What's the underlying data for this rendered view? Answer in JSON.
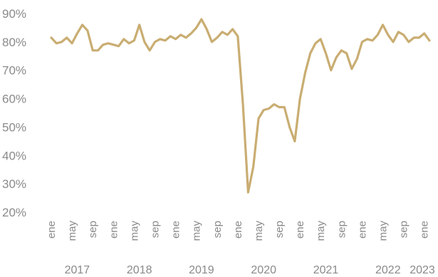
{
  "chart_data": {
    "type": "line",
    "title": "",
    "xlabel": "",
    "ylabel": "",
    "ylim": [
      20,
      90
    ],
    "y_ticks": [
      "20%",
      "30%",
      "40%",
      "50%",
      "60%",
      "70%",
      "80%",
      "90%"
    ],
    "y_tick_values": [
      20,
      30,
      40,
      50,
      60,
      70,
      80,
      90
    ],
    "x_start": "2017-01",
    "month_tick_labels": [
      "ene",
      "may",
      "sep",
      "ene",
      "may",
      "sep",
      "ene",
      "may",
      "sep",
      "ene",
      "may",
      "sep",
      "ene",
      "may",
      "sep",
      "ene",
      "may",
      "sep",
      "ene"
    ],
    "month_tick_dates": [
      "2017-01",
      "2017-05",
      "2017-09",
      "2018-01",
      "2018-05",
      "2018-09",
      "2019-01",
      "2019-05",
      "2019-09",
      "2020-01",
      "2020-05",
      "2020-09",
      "2021-01",
      "2021-05",
      "2021-09",
      "2022-01",
      "2022-05",
      "2022-09",
      "2023-01"
    ],
    "year_labels": [
      "2017",
      "2018",
      "2019",
      "2020",
      "2021",
      "2022",
      "2023"
    ],
    "year_label_dates": [
      "2017-06",
      "2018-06",
      "2019-06",
      "2020-06",
      "2021-06",
      "2022-06",
      "2023-02"
    ],
    "grid": false,
    "legend": "none",
    "colors": {
      "line": "#c9ad72",
      "tick_text": "#8a8a8a"
    },
    "series": [
      {
        "values": [
          81.5,
          79.5,
          80,
          81.5,
          79.5,
          83,
          86,
          84,
          77,
          77,
          79,
          79.5,
          79,
          78.5,
          81,
          79.5,
          80.5,
          86,
          80,
          77,
          80,
          81,
          80.5,
          82,
          81,
          82.5,
          81.5,
          83,
          85,
          88,
          84.5,
          80,
          81.5,
          83.5,
          82.5,
          84.5,
          82,
          58,
          27,
          36,
          53,
          56,
          56.5,
          58,
          57,
          57,
          50,
          45,
          60,
          69,
          76,
          79.5,
          81,
          76,
          70,
          74.5,
          77,
          76,
          70.5,
          74,
          80,
          81,
          80.5,
          82.5,
          86,
          82.5,
          80,
          83.5,
          82.5,
          80,
          81.5,
          81.5,
          83,
          80.5
        ]
      }
    ]
  }
}
